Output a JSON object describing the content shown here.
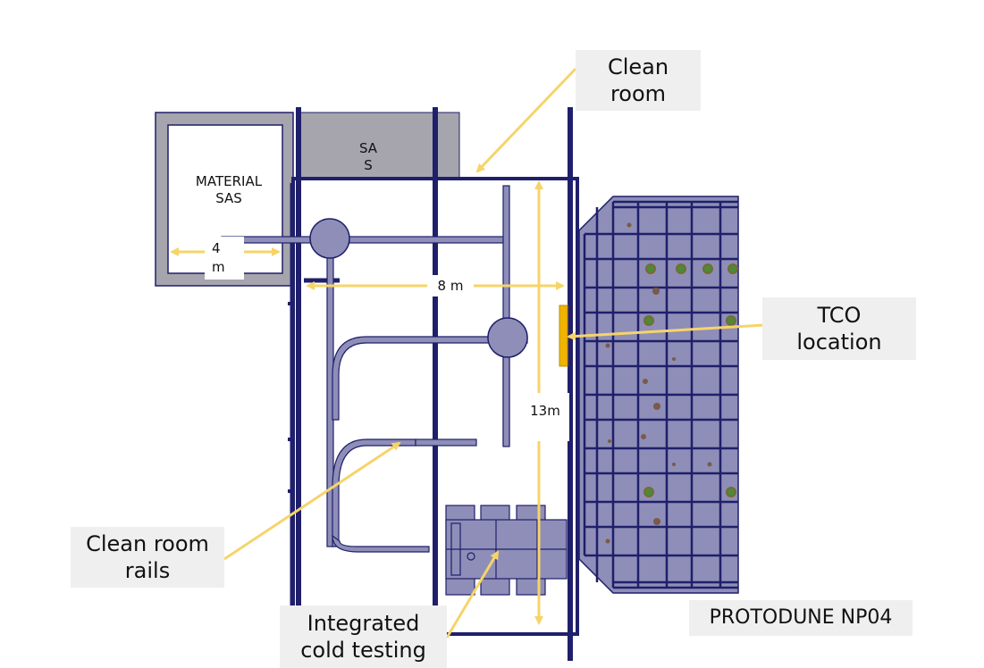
{
  "labels": {
    "clean_room": "Clean\nroom",
    "tco_location": "TCO\nlocation",
    "clean_room_rails": "Clean room\nrails",
    "integrated_cold_testing": "Integrated\ncold testing",
    "protodune": "PROTODUNE NP04",
    "material_sas": "MATERIAL\nSAS",
    "sas": "SA\nS",
    "dim_4m": "4\nm",
    "dim_8m": "8 m",
    "dim_13m": "13m"
  },
  "colors": {
    "structure": "#1f1f6b",
    "fill": "#8e8eb8",
    "wall": "#a6a4ad",
    "arrow": "#f6d46a",
    "tco": "#f0b400"
  }
}
